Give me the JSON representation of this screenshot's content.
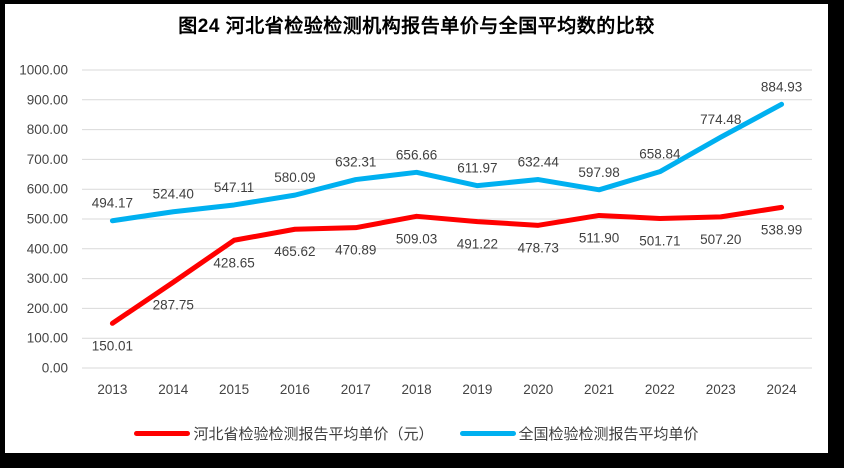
{
  "frame": {
    "background": "#ffffff",
    "border_color": "#000000"
  },
  "chart_data": {
    "type": "line",
    "title": "图24  河北省检验检测机构报告单价与全国平均数的比较",
    "categories": [
      "2013",
      "2014",
      "2015",
      "2016",
      "2017",
      "2018",
      "2019",
      "2020",
      "2021",
      "2022",
      "2023",
      "2024"
    ],
    "series": [
      {
        "name": "河北省检验检测报告平均单价（元）",
        "color": "#FF0000",
        "label_position": "below",
        "values": [
          150.01,
          287.75,
          428.65,
          465.62,
          470.89,
          509.03,
          491.22,
          478.73,
          511.9,
          501.71,
          507.2,
          538.99
        ]
      },
      {
        "name": "全国检验检测报告平均单价",
        "color": "#00B0F0",
        "label_position": "above",
        "values": [
          494.17,
          524.4,
          547.11,
          580.09,
          632.31,
          656.66,
          611.97,
          632.44,
          597.98,
          658.84,
          774.48,
          884.93
        ]
      }
    ],
    "ylim": [
      0,
      1000
    ],
    "y_ticks": [
      "0.00",
      "100.00",
      "200.00",
      "300.00",
      "400.00",
      "500.00",
      "600.00",
      "700.00",
      "800.00",
      "900.00",
      "1000.00"
    ],
    "grid": true,
    "gridline_color": "#D9D9D9",
    "text_color": "#444444",
    "data_label_color": "#404040",
    "value_decimals": 2,
    "legend_position": "bottom",
    "xlabel": "",
    "ylabel": ""
  }
}
